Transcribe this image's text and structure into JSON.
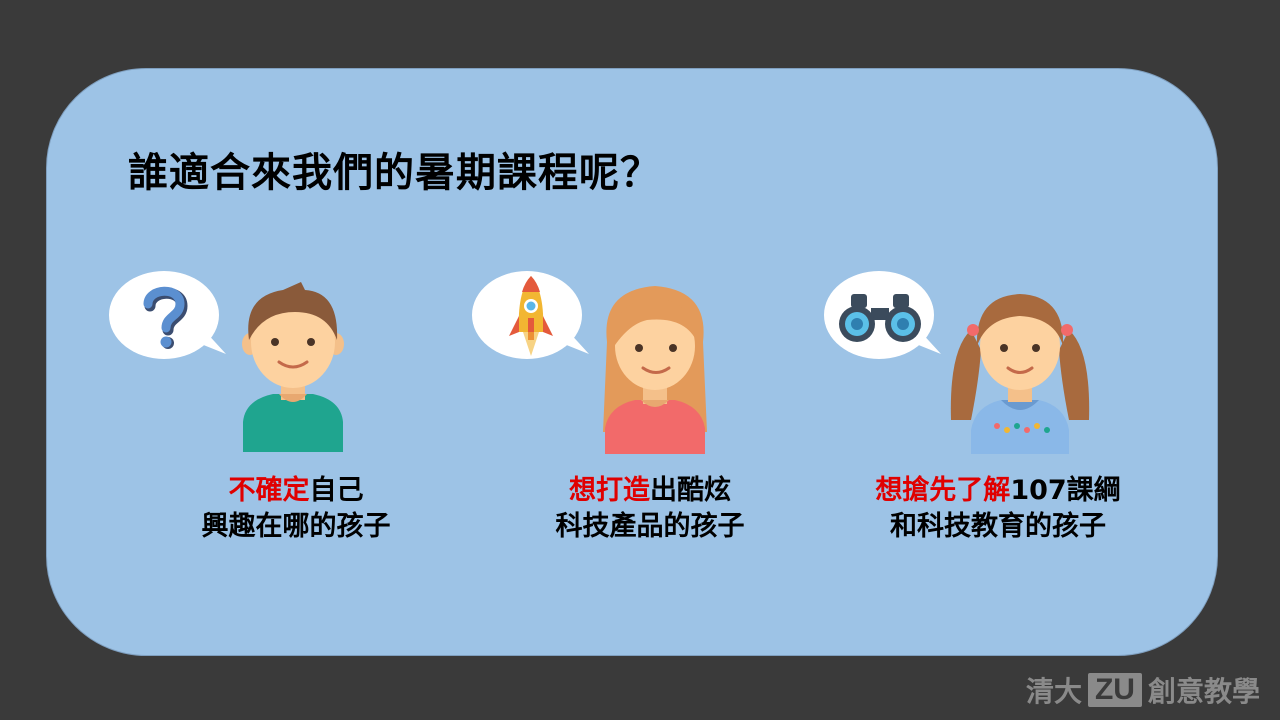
{
  "slide": {
    "title": "誰適合來我們的暑期課程呢？"
  },
  "personas": [
    {
      "icon": "question-mark-icon",
      "caption_highlight": "不確定",
      "caption_line1_rest": "自己",
      "caption_line2": "興趣在哪的孩子"
    },
    {
      "icon": "rocket-icon",
      "caption_highlight": "想打造",
      "caption_line1_rest": "出酷炫",
      "caption_line2": "科技產品的孩子"
    },
    {
      "icon": "binoculars-icon",
      "caption_highlight": "想搶先了解",
      "caption_line1_rest": "107課綱",
      "caption_line2": "和科技教育的孩子"
    }
  ],
  "footer": {
    "prefix": "清大",
    "logo_text": "ZU",
    "suffix": "創意教學"
  },
  "colors": {
    "background": "#3a3a3a",
    "card": "#9dc3e6",
    "highlight": "#e00000"
  }
}
